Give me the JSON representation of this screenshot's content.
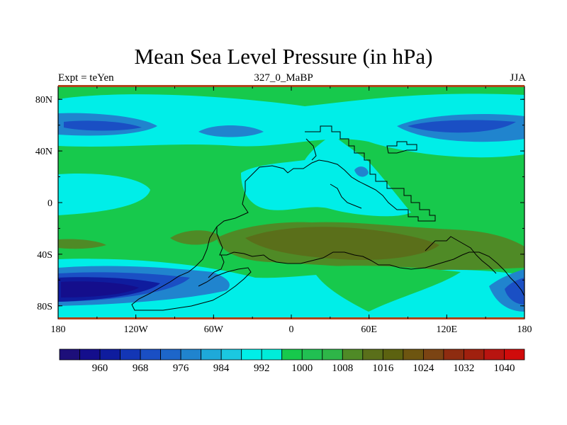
{
  "chart_data": {
    "type": "contour-map",
    "title": "Mean Sea Level Pressure (in hPa)",
    "left_string": "Expt = teYen",
    "center_string": "327_0_MaBP",
    "right_string": "JJA",
    "x_tick_labels": [
      "180",
      "120W",
      "60W",
      "0",
      "60E",
      "120E",
      "180"
    ],
    "y_tick_labels": [
      "80N",
      "40N",
      "0",
      "40S",
      "80S"
    ],
    "colorbar": {
      "labels": [
        "960",
        "968",
        "976",
        "984",
        "992",
        "1000",
        "1008",
        "1016",
        "1024",
        "1032",
        "1040"
      ],
      "levels": [
        956,
        960,
        964,
        968,
        972,
        976,
        980,
        984,
        988,
        992,
        996,
        1000,
        1004,
        1008,
        1012,
        1016,
        1020,
        1024,
        1028,
        1032,
        1036,
        1040,
        1044
      ],
      "colors": [
        "#1d0f7a",
        "#140e8c",
        "#0f1c9e",
        "#1336b5",
        "#1a4fc4",
        "#1d66c9",
        "#2084ce",
        "#1ea9d9",
        "#1bc8e0",
        "#00eee8",
        "#00ecd9",
        "#17c94c",
        "#21c052",
        "#2eb648",
        "#4f8a26",
        "#5a6f1a",
        "#5c6210",
        "#6d5510",
        "#7b4413",
        "#8e2c10",
        "#a0200e",
        "#b81410",
        "#d00b0b"
      ]
    }
  }
}
